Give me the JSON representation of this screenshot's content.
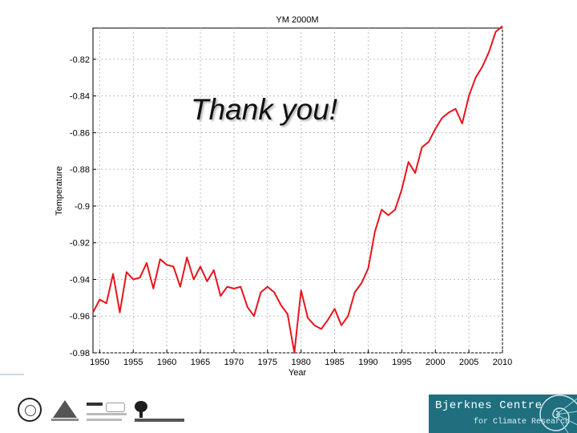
{
  "overlay_text": "Thank you!",
  "chart_data": {
    "type": "line",
    "title": "YM 2000M",
    "xlabel": "Year",
    "ylabel": "Temperature",
    "xlim": [
      1949,
      2010
    ],
    "ylim": [
      -0.98,
      -0.803
    ],
    "xticks": [
      1950,
      1955,
      1960,
      1965,
      1970,
      1975,
      1980,
      1985,
      1990,
      1995,
      2000,
      2005,
      2010
    ],
    "yticks": [
      -0.98,
      -0.96,
      -0.94,
      -0.92,
      -0.9,
      -0.88,
      -0.86,
      -0.84,
      -0.82
    ],
    "ytick_labels": [
      "-0.98",
      "-0.96",
      "-0.94",
      "-0.92",
      "-0.9",
      "-0.88",
      "-0.86",
      "-0.84",
      "-0.82"
    ],
    "grid": true,
    "line_color": "#e8141c",
    "series": [
      {
        "x": [
          1949,
          1950,
          1951,
          1952,
          1953,
          1954,
          1955,
          1956,
          1957,
          1958,
          1959,
          1960,
          1961,
          1962,
          1963,
          1964,
          1965,
          1966,
          1967,
          1968,
          1969,
          1970,
          1971,
          1972,
          1973,
          1974,
          1975,
          1976,
          1977,
          1978,
          1979,
          1980,
          1981,
          1982,
          1983,
          1984,
          1985,
          1986,
          1987,
          1988,
          1989,
          1990,
          1991,
          1992,
          1993,
          1994,
          1995,
          1996,
          1997,
          1998,
          1999,
          2000,
          2001,
          2002,
          2003,
          2004,
          2005,
          2006,
          2007,
          2008,
          2009,
          2010
        ],
        "y": [
          -0.958,
          -0.951,
          -0.953,
          -0.937,
          -0.958,
          -0.936,
          -0.94,
          -0.939,
          -0.931,
          -0.945,
          -0.929,
          -0.932,
          -0.933,
          -0.944,
          -0.928,
          -0.94,
          -0.933,
          -0.941,
          -0.935,
          -0.949,
          -0.944,
          -0.945,
          -0.944,
          -0.955,
          -0.96,
          -0.947,
          -0.944,
          -0.947,
          -0.954,
          -0.959,
          -0.98,
          -0.946,
          -0.961,
          -0.965,
          -0.967,
          -0.962,
          -0.956,
          -0.965,
          -0.96,
          -0.947,
          -0.942,
          -0.934,
          -0.914,
          -0.902,
          -0.905,
          -0.902,
          -0.891,
          -0.876,
          -0.882,
          -0.868,
          -0.865,
          -0.858,
          -0.852,
          -0.849,
          -0.847,
          -0.855,
          -0.84,
          -0.83,
          -0.824,
          -0.816,
          -0.805,
          -0.802
        ]
      }
    ]
  },
  "footer": {
    "bjerknes_title": "Bjerknes Centre",
    "bjerknes_subtitle": "for Climate Research"
  },
  "colors": {
    "bjerknes_bg": "#1f6f7f",
    "grid": "#bdbdbd"
  }
}
